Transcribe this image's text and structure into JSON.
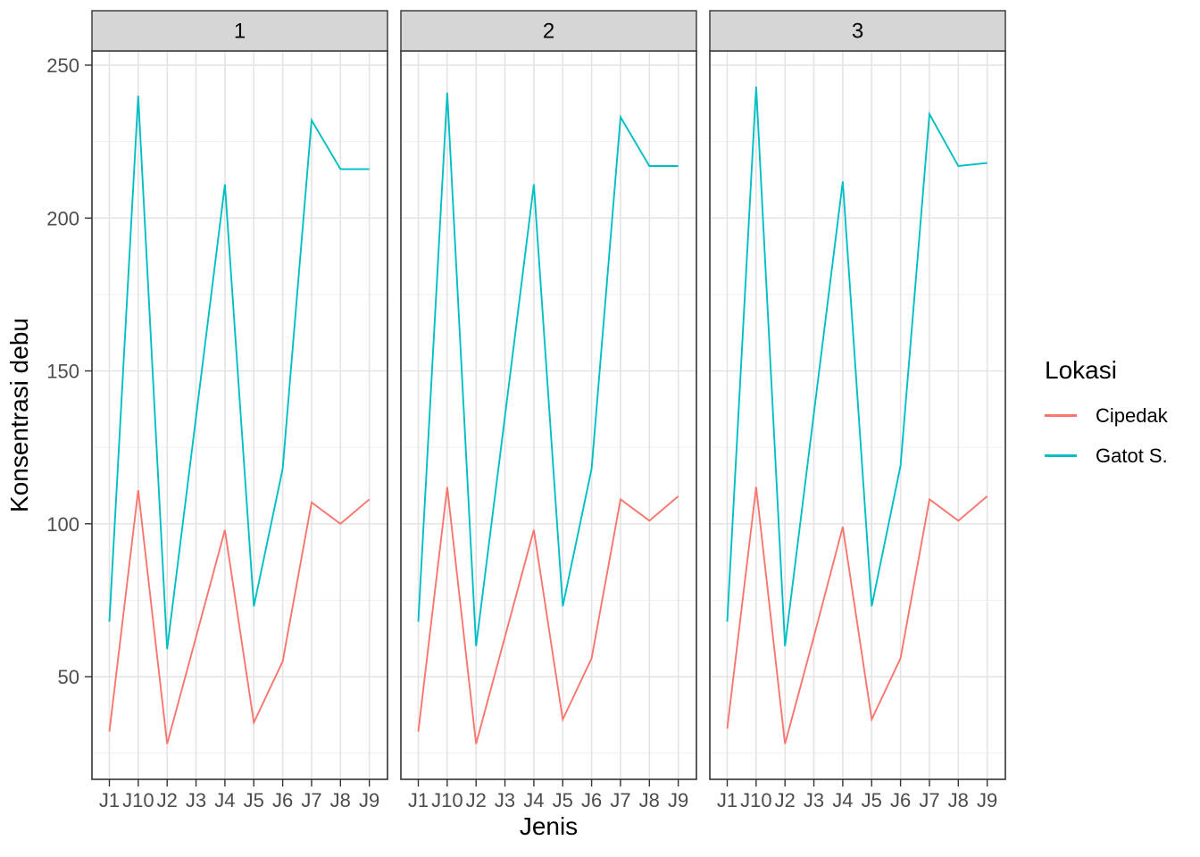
{
  "chart_data": {
    "type": "line",
    "title": "",
    "xlabel": "Jenis",
    "ylabel": "Konsentrasi debu",
    "categories": [
      "J1",
      "J10",
      "J2",
      "J3",
      "J4",
      "J5",
      "J6",
      "J7",
      "J8",
      "J9"
    ],
    "y_ticks": [
      50,
      100,
      150,
      200,
      250
    ],
    "y_minor_ticks": [
      25,
      75,
      125,
      175,
      225
    ],
    "ylim": [
      15,
      255
    ],
    "grid": "light horizontal major+minor lines, vertical major lines at each category",
    "facet_labels": [
      "1",
      "2",
      "3"
    ],
    "legend": {
      "title": "Lokasi",
      "position": "right",
      "entries": [
        {
          "label": "Cipedak",
          "color": "#F8766D"
        },
        {
          "label": "Gatot S.",
          "color": "#00BFC4"
        }
      ]
    },
    "panels": [
      {
        "facet_label": "1",
        "series": [
          {
            "name": "Cipedak",
            "color": "#F8766D",
            "values": [
              32,
              111,
              28,
              63,
              98,
              35,
              55,
              107,
              100,
              108
            ]
          },
          {
            "name": "Gatot S.",
            "color": "#00BFC4",
            "values": [
              68,
              240,
              59,
              135,
              211,
              73,
              118,
              232,
              216,
              216
            ]
          }
        ]
      },
      {
        "facet_label": "2",
        "series": [
          {
            "name": "Cipedak",
            "color": "#F8766D",
            "values": [
              32,
              112,
              28,
              63,
              98,
              36,
              56,
              108,
              101,
              109
            ]
          },
          {
            "name": "Gatot S.",
            "color": "#00BFC4",
            "values": [
              68,
              241,
              60,
              135,
              211,
              73,
              118,
              233,
              217,
              217
            ]
          }
        ]
      },
      {
        "facet_label": "3",
        "series": [
          {
            "name": "Cipedak",
            "color": "#F8766D",
            "values": [
              33,
              112,
              28,
              63,
              99,
              36,
              56,
              108,
              101,
              109
            ]
          },
          {
            "name": "Gatot S.",
            "color": "#00BFC4",
            "values": [
              68,
              243,
              60,
              136,
              212,
              73,
              119,
              234,
              217,
              218
            ]
          }
        ]
      }
    ]
  },
  "colors": {
    "strip_fill": "#D6D6D6",
    "panel_border": "#333333",
    "grid_major": "#E4E4E4",
    "grid_minor": "#EFEFEF",
    "tick_mark": "#333333",
    "tick_label": "#4D4D4D",
    "background": "#FFFFFF"
  }
}
